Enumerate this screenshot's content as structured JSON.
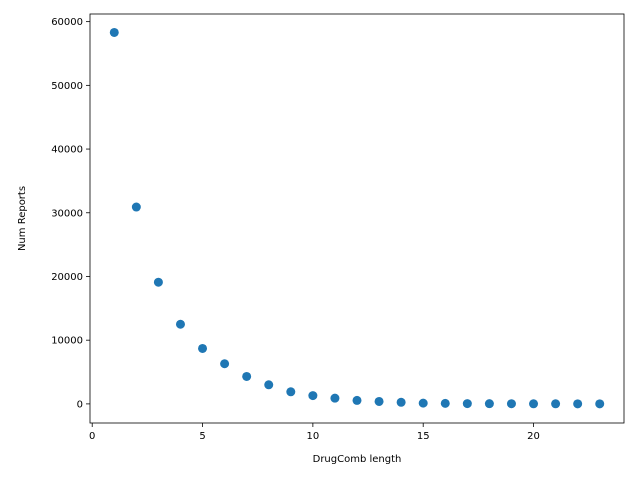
{
  "chart_data": {
    "type": "scatter",
    "title": "",
    "xlabel": "DrugComb length",
    "ylabel": "Num Reports",
    "xlim": [
      -0.1,
      24.1
    ],
    "ylim": [
      -3000,
      61200
    ],
    "xticks": [
      0,
      5,
      10,
      15,
      20
    ],
    "yticks": [
      0,
      10000,
      20000,
      30000,
      40000,
      50000,
      60000
    ],
    "grid": false,
    "legend": "none",
    "marker_color": "#1f77b4",
    "x": [
      1,
      2,
      3,
      4,
      5,
      6,
      7,
      8,
      9,
      10,
      11,
      12,
      13,
      14,
      15,
      16,
      17,
      18,
      19,
      20,
      21,
      22,
      23
    ],
    "y": [
      58300,
      30900,
      19100,
      12500,
      8700,
      6300,
      4300,
      3000,
      1900,
      1300,
      900,
      550,
      380,
      250,
      120,
      80,
      50,
      40,
      30,
      20,
      15,
      10,
      5
    ]
  }
}
